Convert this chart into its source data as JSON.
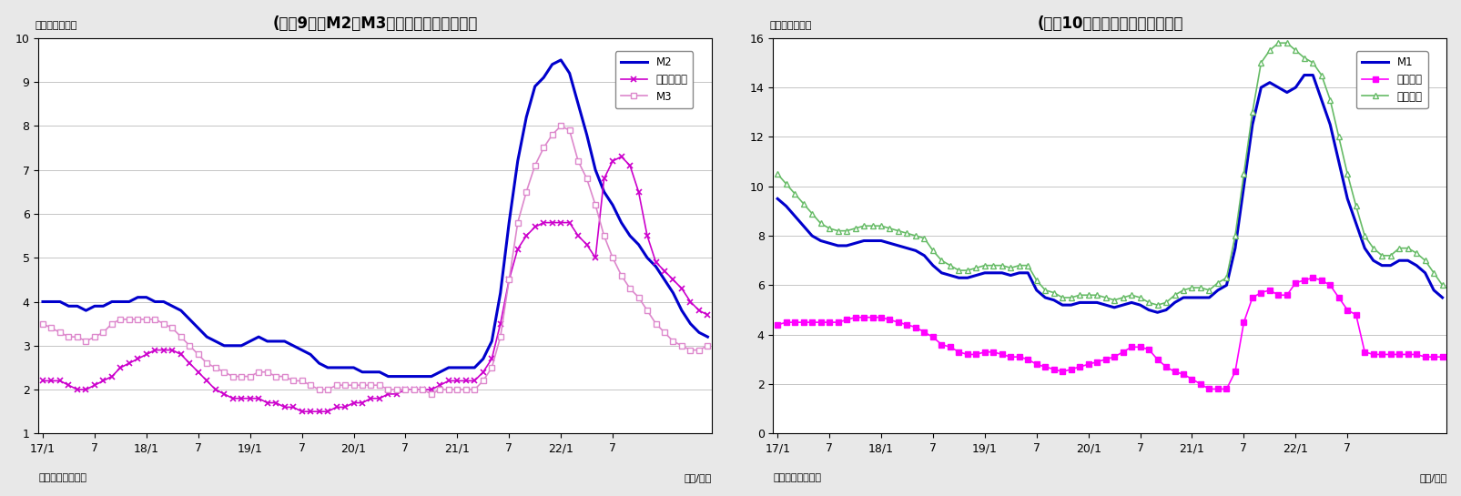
{
  "chart1": {
    "title": "(図袆9）　M2、M3、広義流動性の伸び率",
    "ylabel": "（前年比、％）",
    "xlabel_right": "（年/月）",
    "xlabel_left": "（資料）日本銀行",
    "ylim": [
      1,
      10
    ],
    "yticks": [
      1,
      2,
      3,
      4,
      5,
      6,
      7,
      8,
      9,
      10
    ],
    "series": {
      "M2": {
        "color": "#0000CC",
        "linewidth": 2.2,
        "marker": null,
        "linestyle": "-",
        "label": "M2",
        "data": [
          4.0,
          4.0,
          4.0,
          3.9,
          3.9,
          3.8,
          3.9,
          3.9,
          4.0,
          4.0,
          4.0,
          4.1,
          4.1,
          4.0,
          4.0,
          3.9,
          3.8,
          3.6,
          3.4,
          3.2,
          3.1,
          3.0,
          3.0,
          3.0,
          3.1,
          3.2,
          3.1,
          3.1,
          3.1,
          3.0,
          2.9,
          2.8,
          2.6,
          2.5,
          2.5,
          2.5,
          2.5,
          2.4,
          2.4,
          2.4,
          2.3,
          2.3,
          2.3,
          2.3,
          2.3,
          2.3,
          2.4,
          2.5,
          2.5,
          2.5,
          2.5,
          2.7,
          3.1,
          4.2,
          5.8,
          7.2,
          8.2,
          8.9,
          9.1,
          9.4,
          9.5,
          9.2,
          8.5,
          7.8,
          7.0,
          6.5,
          6.2,
          5.8,
          5.5,
          5.3,
          5.0,
          4.8,
          4.5,
          4.2,
          3.8,
          3.5,
          3.3,
          3.2
        ]
      },
      "kougi": {
        "color": "#CC00CC",
        "linewidth": 1.2,
        "marker": "x",
        "markersize": 4,
        "markeredgewidth": 1.2,
        "linestyle": "-",
        "label": "広義流動性",
        "data": [
          2.2,
          2.2,
          2.2,
          2.1,
          2.0,
          2.0,
          2.1,
          2.2,
          2.3,
          2.5,
          2.6,
          2.7,
          2.8,
          2.9,
          2.9,
          2.9,
          2.8,
          2.6,
          2.4,
          2.2,
          2.0,
          1.9,
          1.8,
          1.8,
          1.8,
          1.8,
          1.7,
          1.7,
          1.6,
          1.6,
          1.5,
          1.5,
          1.5,
          1.5,
          1.6,
          1.6,
          1.7,
          1.7,
          1.8,
          1.8,
          1.9,
          1.9,
          2.0,
          2.0,
          2.0,
          2.0,
          2.1,
          2.2,
          2.2,
          2.2,
          2.2,
          2.4,
          2.7,
          3.5,
          4.5,
          5.2,
          5.5,
          5.7,
          5.8,
          5.8,
          5.8,
          5.8,
          5.5,
          5.3,
          5.0,
          6.8,
          7.2,
          7.3,
          7.1,
          6.5,
          5.5,
          4.9,
          4.7,
          4.5,
          4.3,
          4.0,
          3.8,
          3.7
        ]
      },
      "M3": {
        "color": "#DD88CC",
        "linewidth": 1.2,
        "marker": "s",
        "markersize": 4,
        "markerfacecolor": "white",
        "markeredgecolor": "#DD88CC",
        "markeredgewidth": 1.0,
        "linestyle": "-",
        "label": "M3",
        "data": [
          3.5,
          3.4,
          3.3,
          3.2,
          3.2,
          3.1,
          3.2,
          3.3,
          3.5,
          3.6,
          3.6,
          3.6,
          3.6,
          3.6,
          3.5,
          3.4,
          3.2,
          3.0,
          2.8,
          2.6,
          2.5,
          2.4,
          2.3,
          2.3,
          2.3,
          2.4,
          2.4,
          2.3,
          2.3,
          2.2,
          2.2,
          2.1,
          2.0,
          2.0,
          2.1,
          2.1,
          2.1,
          2.1,
          2.1,
          2.1,
          2.0,
          2.0,
          2.0,
          2.0,
          2.0,
          1.9,
          2.0,
          2.0,
          2.0,
          2.0,
          2.0,
          2.2,
          2.5,
          3.2,
          4.5,
          5.8,
          6.5,
          7.1,
          7.5,
          7.8,
          8.0,
          7.9,
          7.2,
          6.8,
          6.2,
          5.5,
          5.0,
          4.6,
          4.3,
          4.1,
          3.8,
          3.5,
          3.3,
          3.1,
          3.0,
          2.9,
          2.9,
          3.0
        ]
      }
    }
  },
  "chart2": {
    "title": "(図袆10）　現金・預金の伸び率",
    "ylabel": "（前年比、％）",
    "xlabel_right": "（年/月）",
    "xlabel_left": "（資料）日本銀行",
    "ylim": [
      0,
      16
    ],
    "yticks": [
      0,
      2,
      4,
      6,
      8,
      10,
      12,
      14,
      16
    ],
    "series": {
      "M1": {
        "color": "#0000CC",
        "linewidth": 2.2,
        "marker": null,
        "linestyle": "-",
        "label": "M1",
        "data": [
          9.5,
          9.2,
          8.8,
          8.4,
          8.0,
          7.8,
          7.7,
          7.6,
          7.6,
          7.7,
          7.8,
          7.8,
          7.8,
          7.7,
          7.6,
          7.5,
          7.4,
          7.2,
          6.8,
          6.5,
          6.4,
          6.3,
          6.3,
          6.4,
          6.5,
          6.5,
          6.5,
          6.4,
          6.5,
          6.5,
          5.8,
          5.5,
          5.4,
          5.2,
          5.2,
          5.3,
          5.3,
          5.3,
          5.2,
          5.1,
          5.2,
          5.3,
          5.2,
          5.0,
          4.9,
          5.0,
          5.3,
          5.5,
          5.5,
          5.5,
          5.5,
          5.8,
          6.0,
          7.5,
          10.0,
          12.5,
          14.0,
          14.2,
          14.0,
          13.8,
          14.0,
          14.5,
          14.5,
          13.5,
          12.5,
          11.0,
          9.5,
          8.5,
          7.5,
          7.0,
          6.8,
          6.8,
          7.0,
          7.0,
          6.8,
          6.5,
          5.8,
          5.5
        ]
      },
      "genkin": {
        "color": "#FF00FF",
        "linewidth": 1.2,
        "marker": "s",
        "markersize": 4,
        "markerfacecolor": "#FF00FF",
        "markeredgecolor": "#FF00FF",
        "markeredgewidth": 1.0,
        "linestyle": "-",
        "label": "現金通貨",
        "data": [
          4.4,
          4.5,
          4.5,
          4.5,
          4.5,
          4.5,
          4.5,
          4.5,
          4.6,
          4.7,
          4.7,
          4.7,
          4.7,
          4.6,
          4.5,
          4.4,
          4.3,
          4.1,
          3.9,
          3.6,
          3.5,
          3.3,
          3.2,
          3.2,
          3.3,
          3.3,
          3.2,
          3.1,
          3.1,
          3.0,
          2.8,
          2.7,
          2.6,
          2.5,
          2.6,
          2.7,
          2.8,
          2.9,
          3.0,
          3.1,
          3.3,
          3.5,
          3.5,
          3.4,
          3.0,
          2.7,
          2.5,
          2.4,
          2.2,
          2.0,
          1.8,
          1.8,
          1.8,
          2.5,
          4.5,
          5.5,
          5.7,
          5.8,
          5.6,
          5.6,
          6.1,
          6.2,
          6.3,
          6.2,
          6.0,
          5.5,
          5.0,
          4.8,
          3.3,
          3.2,
          3.2,
          3.2,
          3.2,
          3.2,
          3.2,
          3.1,
          3.1,
          3.1
        ]
      },
      "yokin": {
        "color": "#66BB66",
        "linewidth": 1.2,
        "marker": "^",
        "markersize": 5,
        "markerfacecolor": "white",
        "markeredgecolor": "#66BB66",
        "markeredgewidth": 1.0,
        "linestyle": "-",
        "label": "預金通貨",
        "data": [
          10.5,
          10.1,
          9.7,
          9.3,
          8.9,
          8.5,
          8.3,
          8.2,
          8.2,
          8.3,
          8.4,
          8.4,
          8.4,
          8.3,
          8.2,
          8.1,
          8.0,
          7.9,
          7.4,
          7.0,
          6.8,
          6.6,
          6.6,
          6.7,
          6.8,
          6.8,
          6.8,
          6.7,
          6.8,
          6.8,
          6.2,
          5.8,
          5.7,
          5.5,
          5.5,
          5.6,
          5.6,
          5.6,
          5.5,
          5.4,
          5.5,
          5.6,
          5.5,
          5.3,
          5.2,
          5.3,
          5.6,
          5.8,
          5.9,
          5.9,
          5.8,
          6.1,
          6.3,
          8.0,
          10.5,
          13.0,
          15.0,
          15.5,
          15.8,
          15.8,
          15.5,
          15.2,
          15.0,
          14.5,
          13.5,
          12.0,
          10.5,
          9.2,
          8.0,
          7.5,
          7.2,
          7.2,
          7.5,
          7.5,
          7.3,
          7.0,
          6.5,
          6.0
        ]
      }
    }
  },
  "tick_positions": [
    0,
    6,
    12,
    18,
    24,
    30,
    36,
    42,
    48,
    54,
    60,
    66
  ],
  "tick_labels": [
    "17/1",
    "7",
    "18/1",
    "7",
    "19/1",
    "7",
    "20/1",
    "7",
    "21/1",
    "7",
    "22/1",
    "7"
  ],
  "n_points": 78,
  "bg_color": "#e8e8e8",
  "plot_bg_color": "#ffffff"
}
